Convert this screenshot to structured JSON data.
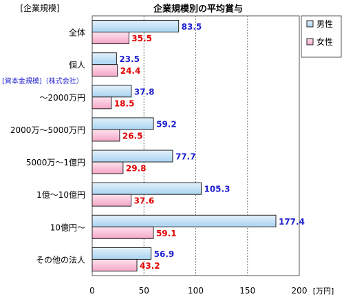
{
  "chart_data": {
    "type": "bar",
    "orientation": "horizontal",
    "title": "企業規模別の平均賞与",
    "category_axis_label": "[企業規模]",
    "category_group_label": "[資本金規模]（株式会社）",
    "unit_label": "[万円]",
    "categories": [
      "全体",
      "個人",
      "～2000万円",
      "2000万～5000万円",
      "5000万～1億円",
      "1億～10億円",
      "10億円～",
      "その他の法人"
    ],
    "series": [
      {
        "name": "男性",
        "values": [
          83.5,
          23.5,
          37.8,
          59.2,
          77.7,
          105.3,
          177.4,
          56.9
        ]
      },
      {
        "name": "女性",
        "values": [
          35.5,
          24.4,
          18.5,
          26.5,
          29.8,
          37.6,
          59.1,
          43.2
        ]
      }
    ],
    "x_ticks": [
      "0",
      "50",
      "100",
      "150",
      "200"
    ],
    "xlim": [
      0,
      200
    ],
    "grid": "vertical dashed",
    "legend_position": "top-right",
    "colors": {
      "male_bar": "#a9d3f0",
      "female_bar": "#f5a6c6",
      "male_label": "#1f1fcf",
      "female_label": "#e00000"
    }
  }
}
